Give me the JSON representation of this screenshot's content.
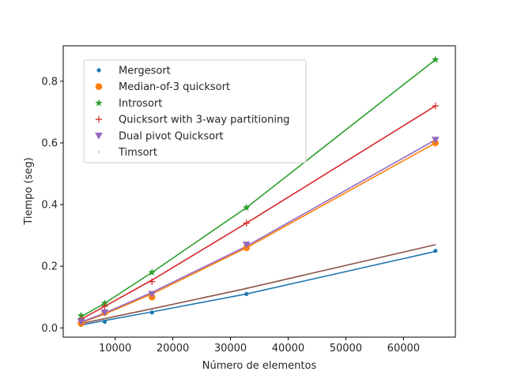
{
  "chart_data": {
    "type": "line",
    "xlabel": "Número de elementos",
    "ylabel": "Tiempo (seg)",
    "xlim": [
      1000,
      69000
    ],
    "ylim": [
      -0.03,
      0.915
    ],
    "xticks": [
      10000,
      20000,
      30000,
      40000,
      50000,
      60000
    ],
    "xtick_labels": [
      "10000",
      "20000",
      "30000",
      "40000",
      "50000",
      "60000"
    ],
    "yticks": [
      0.0,
      0.2,
      0.4,
      0.6,
      0.8
    ],
    "ytick_labels": [
      "0.0",
      "0.2",
      "0.4",
      "0.6",
      "0.8"
    ],
    "legend_position": "upper-left",
    "grid": false,
    "x": [
      4096,
      8192,
      16384,
      32768,
      65536
    ],
    "series": [
      {
        "name": "Mergesort",
        "marker": "dot",
        "color": "#1f77b4",
        "values": [
          0.01,
          0.02,
          0.05,
          0.11,
          0.25
        ],
        "fit": [
          0.009,
          0.024,
          0.052,
          0.11,
          0.248
        ]
      },
      {
        "name": "Median-of-3 quicksort",
        "marker": "circle",
        "color": "#ff7f0e",
        "values": [
          0.015,
          0.05,
          0.1,
          0.26,
          0.6
        ],
        "fit": [
          0.017,
          0.045,
          0.11,
          0.26,
          0.6
        ]
      },
      {
        "name": "Introsort",
        "marker": "star",
        "color": "#2ca02c",
        "values": [
          0.04,
          0.08,
          0.18,
          0.39,
          0.87
        ],
        "fit": [
          0.036,
          0.08,
          0.18,
          0.39,
          0.87
        ]
      },
      {
        "name": "Quicksort with 3-way partitioning",
        "marker": "plus",
        "color": "#d62728",
        "values": [
          0.03,
          0.07,
          0.15,
          0.34,
          0.72
        ],
        "fit": [
          0.028,
          0.07,
          0.155,
          0.34,
          0.72
        ]
      },
      {
        "name": "Dual pivot Quicksort",
        "marker": "triangle-down",
        "color": "#9467bd",
        "values": [
          0.02,
          0.05,
          0.11,
          0.27,
          0.61
        ],
        "fit": [
          0.019,
          0.048,
          0.115,
          0.265,
          0.61
        ]
      },
      {
        "name": "Timsort",
        "marker": "pixel",
        "color": "#8c564b",
        "values": [
          0.015,
          0.03,
          0.06,
          0.13,
          0.27
        ],
        "fit": [
          0.014,
          0.03,
          0.062,
          0.128,
          0.27
        ]
      }
    ]
  }
}
